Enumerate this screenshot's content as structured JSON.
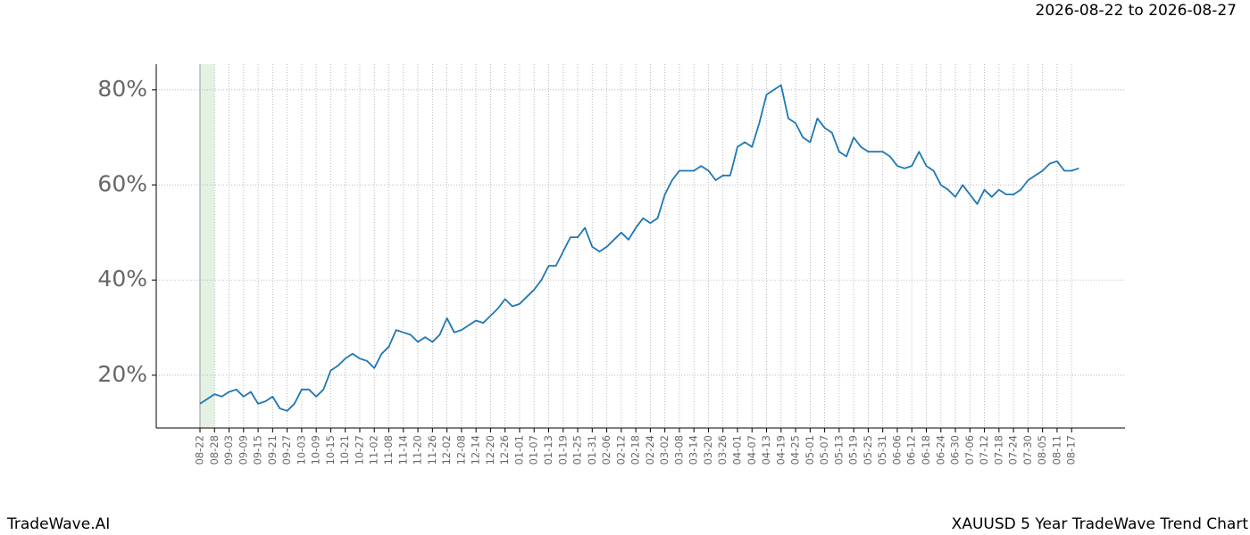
{
  "header": {
    "date_range": "2026-08-22 to 2026-08-27"
  },
  "footer": {
    "brand": "TradeWave.AI",
    "chart_name": "XAUUSD 5 Year TradeWave Trend Chart"
  },
  "chart_data": {
    "type": "line",
    "categories": [
      "08-22",
      null,
      "08-28",
      null,
      "09-03",
      null,
      "09-09",
      null,
      "09-15",
      null,
      "09-21",
      null,
      "09-27",
      null,
      "10-03",
      null,
      "10-09",
      null,
      "10-15",
      null,
      "10-21",
      null,
      "10-27",
      null,
      "11-02",
      null,
      "11-08",
      null,
      "11-14",
      null,
      "11-20",
      null,
      "11-26",
      null,
      "12-02",
      null,
      "12-08",
      null,
      "12-14",
      null,
      "12-20",
      null,
      "12-26",
      null,
      "01-01",
      null,
      "01-07",
      null,
      "01-13",
      null,
      "01-19",
      null,
      "01-25",
      null,
      "01-31",
      null,
      "02-06",
      null,
      "02-12",
      null,
      "02-18",
      null,
      "02-24",
      null,
      "03-02",
      null,
      "03-08",
      null,
      "03-14",
      null,
      "03-20",
      null,
      "03-26",
      null,
      "04-01",
      null,
      "04-07",
      null,
      "04-13",
      null,
      "04-19",
      null,
      "04-25",
      null,
      "05-01",
      null,
      "05-07",
      null,
      "05-13",
      null,
      "05-19",
      null,
      "05-25",
      null,
      "05-31",
      null,
      "06-06",
      null,
      "06-12",
      null,
      "06-18",
      null,
      "06-24",
      null,
      "06-30",
      null,
      "07-06",
      null,
      "07-12",
      null,
      "07-18",
      null,
      "07-24",
      null,
      "07-30",
      null,
      "08-05",
      null,
      "08-11",
      null,
      "08-17",
      null
    ],
    "series": [
      {
        "color": "#1f77b4",
        "values": [
          14,
          15,
          16,
          15.5,
          16.5,
          17,
          15.5,
          16.5,
          14,
          14.5,
          15.5,
          13,
          12.5,
          14,
          17,
          17,
          15.5,
          17,
          21,
          22,
          23.5,
          24.5,
          23.5,
          23,
          21.5,
          24.5,
          26,
          29.5,
          29,
          28.5,
          27,
          28,
          27,
          28.5,
          32,
          29,
          29.5,
          30.5,
          31.5,
          31,
          32.5,
          34,
          36,
          34.5,
          35,
          36.5,
          38,
          40,
          43,
          43,
          46,
          49,
          49,
          51,
          47,
          46,
          47,
          48.5,
          50,
          48.5,
          51,
          53,
          52,
          53,
          58,
          61,
          63,
          63,
          63,
          64,
          63,
          61,
          62,
          62,
          68,
          69,
          68,
          73,
          79,
          80,
          81,
          74,
          73,
          70,
          69,
          74,
          72,
          71,
          67,
          66,
          70,
          68,
          67,
          67,
          67,
          66,
          64,
          63.5,
          64,
          67,
          64,
          63,
          60,
          59,
          57.5,
          60,
          58,
          56,
          59,
          57.5,
          59,
          58,
          58,
          59,
          61,
          62,
          63,
          64.5,
          65,
          63,
          63,
          63.5
        ]
      }
    ],
    "ylim": [
      8.9,
      85.4
    ],
    "yticks": [
      {
        "value": 20,
        "label": "20%"
      },
      {
        "value": 40,
        "label": "40%"
      },
      {
        "value": 60,
        "label": "60%"
      },
      {
        "value": 80,
        "label": "80%"
      }
    ],
    "grid": true,
    "highlight": {
      "from": 0,
      "to": 2,
      "color": "#e3f2e3"
    }
  }
}
